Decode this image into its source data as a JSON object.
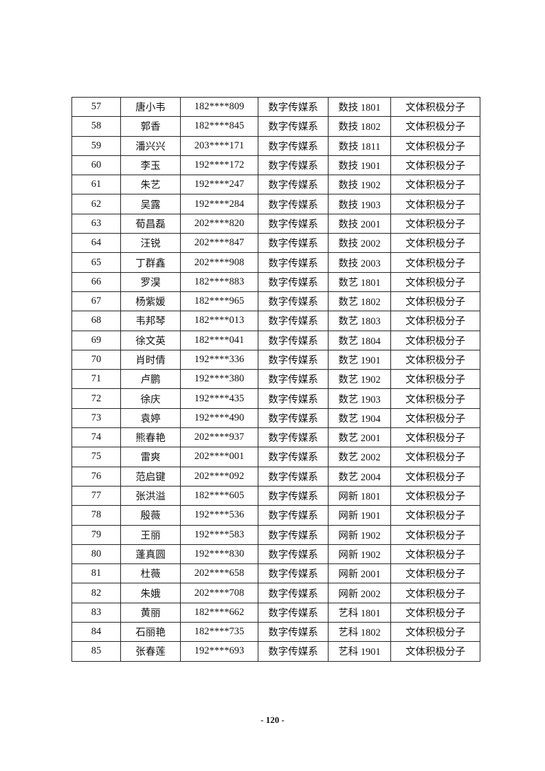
{
  "table": {
    "rows": [
      [
        "57",
        "唐小韦",
        "182****809",
        "数字传媒系",
        "数技 1801",
        "文体积极分子"
      ],
      [
        "58",
        "郭香",
        "182****845",
        "数字传媒系",
        "数技 1802",
        "文体积极分子"
      ],
      [
        "59",
        "潘兴兴",
        "203****171",
        "数字传媒系",
        "数技 1811",
        "文体积极分子"
      ],
      [
        "60",
        "李玉",
        "192****172",
        "数字传媒系",
        "数技 1901",
        "文体积极分子"
      ],
      [
        "61",
        "朱艺",
        "192****247",
        "数字传媒系",
        "数技 1902",
        "文体积极分子"
      ],
      [
        "62",
        "吴露",
        "192****284",
        "数字传媒系",
        "数技 1903",
        "文体积极分子"
      ],
      [
        "63",
        "荀昌磊",
        "202****820",
        "数字传媒系",
        "数技 2001",
        "文体积极分子"
      ],
      [
        "64",
        "汪锐",
        "202****847",
        "数字传媒系",
        "数技 2002",
        "文体积极分子"
      ],
      [
        "65",
        "丁群鑫",
        "202****908",
        "数字传媒系",
        "数技 2003",
        "文体积极分子"
      ],
      [
        "66",
        "罗淏",
        "182****883",
        "数字传媒系",
        "数艺 1801",
        "文体积极分子"
      ],
      [
        "67",
        "杨紫媛",
        "182****965",
        "数字传媒系",
        "数艺 1802",
        "文体积极分子"
      ],
      [
        "68",
        "韦邦琴",
        "182****013",
        "数字传媒系",
        "数艺 1803",
        "文体积极分子"
      ],
      [
        "69",
        "徐文英",
        "182****041",
        "数字传媒系",
        "数艺 1804",
        "文体积极分子"
      ],
      [
        "70",
        "肖时倩",
        "192****336",
        "数字传媒系",
        "数艺 1901",
        "文体积极分子"
      ],
      [
        "71",
        "卢鹏",
        "192****380",
        "数字传媒系",
        "数艺 1902",
        "文体积极分子"
      ],
      [
        "72",
        "徐庆",
        "192****435",
        "数字传媒系",
        "数艺 1903",
        "文体积极分子"
      ],
      [
        "73",
        "袁婷",
        "192****490",
        "数字传媒系",
        "数艺 1904",
        "文体积极分子"
      ],
      [
        "74",
        "熊春艳",
        "202****937",
        "数字传媒系",
        "数艺 2001",
        "文体积极分子"
      ],
      [
        "75",
        "雷爽",
        "202****001",
        "数字传媒系",
        "数艺 2002",
        "文体积极分子"
      ],
      [
        "76",
        "范启键",
        "202****092",
        "数字传媒系",
        "数艺 2004",
        "文体积极分子"
      ],
      [
        "77",
        "张洪溢",
        "182****605",
        "数字传媒系",
        "网新 1801",
        "文体积极分子"
      ],
      [
        "78",
        "殷薇",
        "192****536",
        "数字传媒系",
        "网新 1901",
        "文体积极分子"
      ],
      [
        "79",
        "王丽",
        "192****583",
        "数字传媒系",
        "网新 1902",
        "文体积极分子"
      ],
      [
        "80",
        "蓬真圆",
        "192****830",
        "数字传媒系",
        "网新 1902",
        "文体积极分子"
      ],
      [
        "81",
        "杜薇",
        "202****658",
        "数字传媒系",
        "网新 2001",
        "文体积极分子"
      ],
      [
        "82",
        "朱娥",
        "202****708",
        "数字传媒系",
        "网新 2002",
        "文体积极分子"
      ],
      [
        "83",
        "黄丽",
        "182****662",
        "数字传媒系",
        "艺科 1801",
        "文体积极分子"
      ],
      [
        "84",
        "石丽艳",
        "182****735",
        "数字传媒系",
        "艺科 1802",
        "文体积极分子"
      ],
      [
        "85",
        "张春莲",
        "192****693",
        "数字传媒系",
        "艺科 1901",
        "文体积极分子"
      ]
    ]
  },
  "footer": {
    "page_number": "- 120 -"
  }
}
